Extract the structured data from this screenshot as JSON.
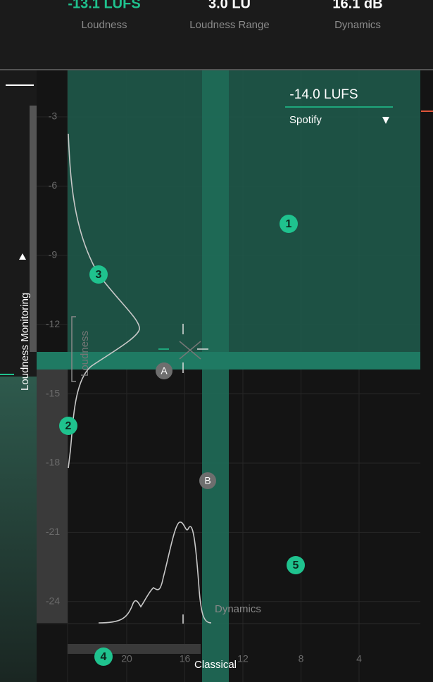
{
  "header": {
    "metrics": [
      {
        "value": "-13.1 LUFS",
        "label": "Loudness"
      },
      {
        "value": "3.0 LU",
        "label": "Loudness Range"
      },
      {
        "value": "16.1 dB",
        "label": "Dynamics"
      }
    ]
  },
  "target": {
    "value": "-14.0 LUFS",
    "preset": "Spotify"
  },
  "panel": {
    "mode": "Loudness Monitoring"
  },
  "plot": {
    "y_ticks": [
      "-3",
      "-6",
      "-9",
      "-12",
      "-15",
      "-18",
      "-21",
      "-24"
    ],
    "x_ticks": [
      "20",
      "16",
      "12",
      "8",
      "4"
    ],
    "y_axis_label": "Loudness",
    "x_axis_label": "Dynamics",
    "genre": "Classical"
  },
  "badges": {
    "numbered": [
      "1",
      "2",
      "3",
      "4",
      "5"
    ],
    "lettered": [
      "A",
      "B"
    ]
  }
}
